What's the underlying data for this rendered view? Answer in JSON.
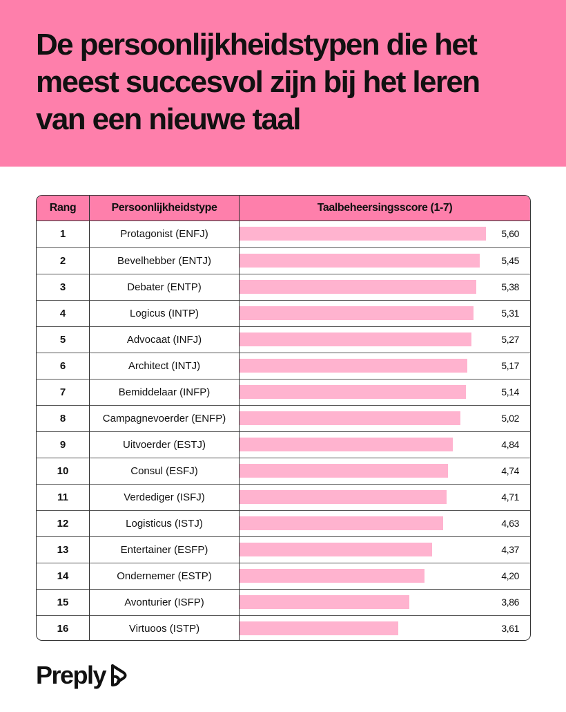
{
  "title": "De persoonlijkheidstypen die het meest succesvol zijn bij het leren van een nieuwe taal",
  "brand": "Preply",
  "table": {
    "headers": {
      "rank": "Rang",
      "type": "Persoonlijkheidstype",
      "score": "Taalbeheersingsscore (1-7)"
    }
  },
  "colors": {
    "accent": "#fe7fab",
    "bar": "#ffb3cf",
    "text": "#111111"
  },
  "chart_data": {
    "type": "bar",
    "title": "De persoonlijkheidstypen die het meest succesvol zijn bij het leren van een nieuwe taal",
    "xlabel": "Persoonlijkheidstype",
    "ylabel": "Taalbeheersingsscore (1-7)",
    "ylim": [
      0,
      7
    ],
    "ranks": [
      "1",
      "2",
      "3",
      "4",
      "5",
      "6",
      "7",
      "8",
      "9",
      "10",
      "11",
      "12",
      "13",
      "14",
      "15",
      "16"
    ],
    "categories": [
      "Protagonist (ENFJ)",
      "Bevelhebber (ENTJ)",
      "Debater (ENTP)",
      "Logicus (INTP)",
      "Advocaat (INFJ)",
      "Architect (INTJ)",
      "Bemiddelaar (INFP)",
      "Campagnevoerder (ENFP)",
      "Uitvoerder (ESTJ)",
      "Consul (ESFJ)",
      "Verdediger (ISFJ)",
      "Logisticus (ISTJ)",
      "Entertainer (ESFP)",
      "Ondernemer (ESTP)",
      "Avonturier (ISFP)",
      "Virtuoos (ISTP)"
    ],
    "values": [
      5.6,
      5.45,
      5.38,
      5.31,
      5.27,
      5.17,
      5.14,
      5.02,
      4.84,
      4.74,
      4.71,
      4.63,
      4.37,
      4.2,
      3.86,
      3.61
    ],
    "value_labels": [
      "5,60",
      "5,45",
      "5,38",
      "5,31",
      "5,27",
      "5,17",
      "5,14",
      "5,02",
      "4,84",
      "4,74",
      "4,71",
      "4,63",
      "4,37",
      "4,20",
      "3,86",
      "3,61"
    ]
  }
}
